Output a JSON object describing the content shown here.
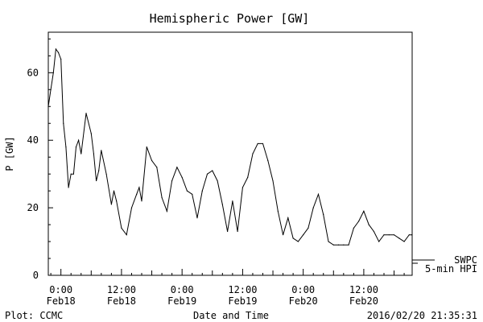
{
  "chart_data": {
    "type": "line",
    "title": "Hemispheric Power [GW]",
    "ylabel": "P [GW]",
    "xlabel": "Date and Time",
    "ylim": [
      0,
      72
    ],
    "yticks": [
      0,
      20,
      40,
      60
    ],
    "xlim": [
      "2016-02-17T21:30",
      "2016-02-20T21:35"
    ],
    "xticks": [
      {
        "t": "2016-02-18T00:00",
        "time": "0:00",
        "date": "Feb18"
      },
      {
        "t": "2016-02-18T12:00",
        "time": "12:00",
        "date": "Feb18"
      },
      {
        "t": "2016-02-19T00:00",
        "time": "0:00",
        "date": "Feb19"
      },
      {
        "t": "2016-02-19T12:00",
        "time": "12:00",
        "date": "Feb19"
      },
      {
        "t": "2016-02-20T00:00",
        "time": "0:00",
        "date": "Feb20"
      },
      {
        "t": "2016-02-20T12:00",
        "time": "12:00",
        "date": "Feb20"
      }
    ],
    "grid": false,
    "series": [
      {
        "name": "SWPC",
        "x": [
          "2016-02-17T21:30",
          "2016-02-17T22:00",
          "2016-02-17T22:30",
          "2016-02-17T23:00",
          "2016-02-17T23:30",
          "2016-02-18T00:00",
          "2016-02-18T00:30",
          "2016-02-18T01:00",
          "2016-02-18T01:30",
          "2016-02-18T02:00",
          "2016-02-18T02:30",
          "2016-02-18T03:00",
          "2016-02-18T03:30",
          "2016-02-18T04:00",
          "2016-02-18T05:00",
          "2016-02-18T06:00",
          "2016-02-18T06:30",
          "2016-02-18T07:00",
          "2016-02-18T07:30",
          "2016-02-18T08:00",
          "2016-02-18T09:00",
          "2016-02-18T10:00",
          "2016-02-18T10:30",
          "2016-02-18T11:00",
          "2016-02-18T12:00",
          "2016-02-18T13:00",
          "2016-02-18T14:00",
          "2016-02-18T15:00",
          "2016-02-18T15:30",
          "2016-02-18T16:00",
          "2016-02-18T17:00",
          "2016-02-18T18:00",
          "2016-02-18T19:00",
          "2016-02-18T20:00",
          "2016-02-18T21:00",
          "2016-02-18T22:00",
          "2016-02-18T23:00",
          "2016-02-19T00:00",
          "2016-02-19T01:00",
          "2016-02-19T02:00",
          "2016-02-19T03:00",
          "2016-02-19T04:00",
          "2016-02-19T05:00",
          "2016-02-19T06:00",
          "2016-02-19T07:00",
          "2016-02-19T08:00",
          "2016-02-19T09:00",
          "2016-02-19T10:00",
          "2016-02-19T11:00",
          "2016-02-19T12:00",
          "2016-02-19T13:00",
          "2016-02-19T14:00",
          "2016-02-19T15:00",
          "2016-02-19T16:00",
          "2016-02-19T17:00",
          "2016-02-19T18:00",
          "2016-02-19T19:00",
          "2016-02-19T20:00",
          "2016-02-19T21:00",
          "2016-02-19T22:00",
          "2016-02-19T23:00",
          "2016-02-20T00:00",
          "2016-02-20T01:00",
          "2016-02-20T02:00",
          "2016-02-20T03:00",
          "2016-02-20T04:00",
          "2016-02-20T05:00",
          "2016-02-20T06:00",
          "2016-02-20T07:00",
          "2016-02-20T08:00",
          "2016-02-20T09:00",
          "2016-02-20T10:00",
          "2016-02-20T11:00",
          "2016-02-20T12:00",
          "2016-02-20T13:00",
          "2016-02-20T14:00",
          "2016-02-20T15:00",
          "2016-02-20T16:00",
          "2016-02-20T17:00",
          "2016-02-20T18:00",
          "2016-02-20T19:00",
          "2016-02-20T20:00",
          "2016-02-20T21:00",
          "2016-02-20T21:30"
        ],
        "y": [
          50,
          55,
          60,
          67,
          66,
          64,
          45,
          38,
          26,
          30,
          30,
          38,
          40,
          36,
          48,
          42,
          36,
          28,
          31,
          37,
          30,
          21,
          25,
          22,
          14,
          12,
          20,
          24,
          26,
          22,
          38,
          34,
          32,
          23,
          19,
          28,
          32,
          29,
          25,
          24,
          17,
          25,
          30,
          31,
          28,
          21,
          13,
          22,
          13,
          26,
          29,
          36,
          39,
          39,
          34,
          28,
          19,
          12,
          17,
          11,
          10,
          12,
          14,
          20,
          24,
          18,
          10,
          9,
          9,
          9,
          9,
          14,
          16,
          19,
          15,
          13,
          10,
          12,
          12,
          12,
          11,
          10,
          12,
          12
        ]
      }
    ],
    "legend": [
      {
        "label": "SWPC",
        "style": "line"
      },
      {
        "label": "5-min HPI",
        "style": "line"
      }
    ]
  },
  "footer": {
    "left": "Plot: CCMC",
    "center": "Date and Time",
    "right": "2016/02/20 21:35:31"
  }
}
